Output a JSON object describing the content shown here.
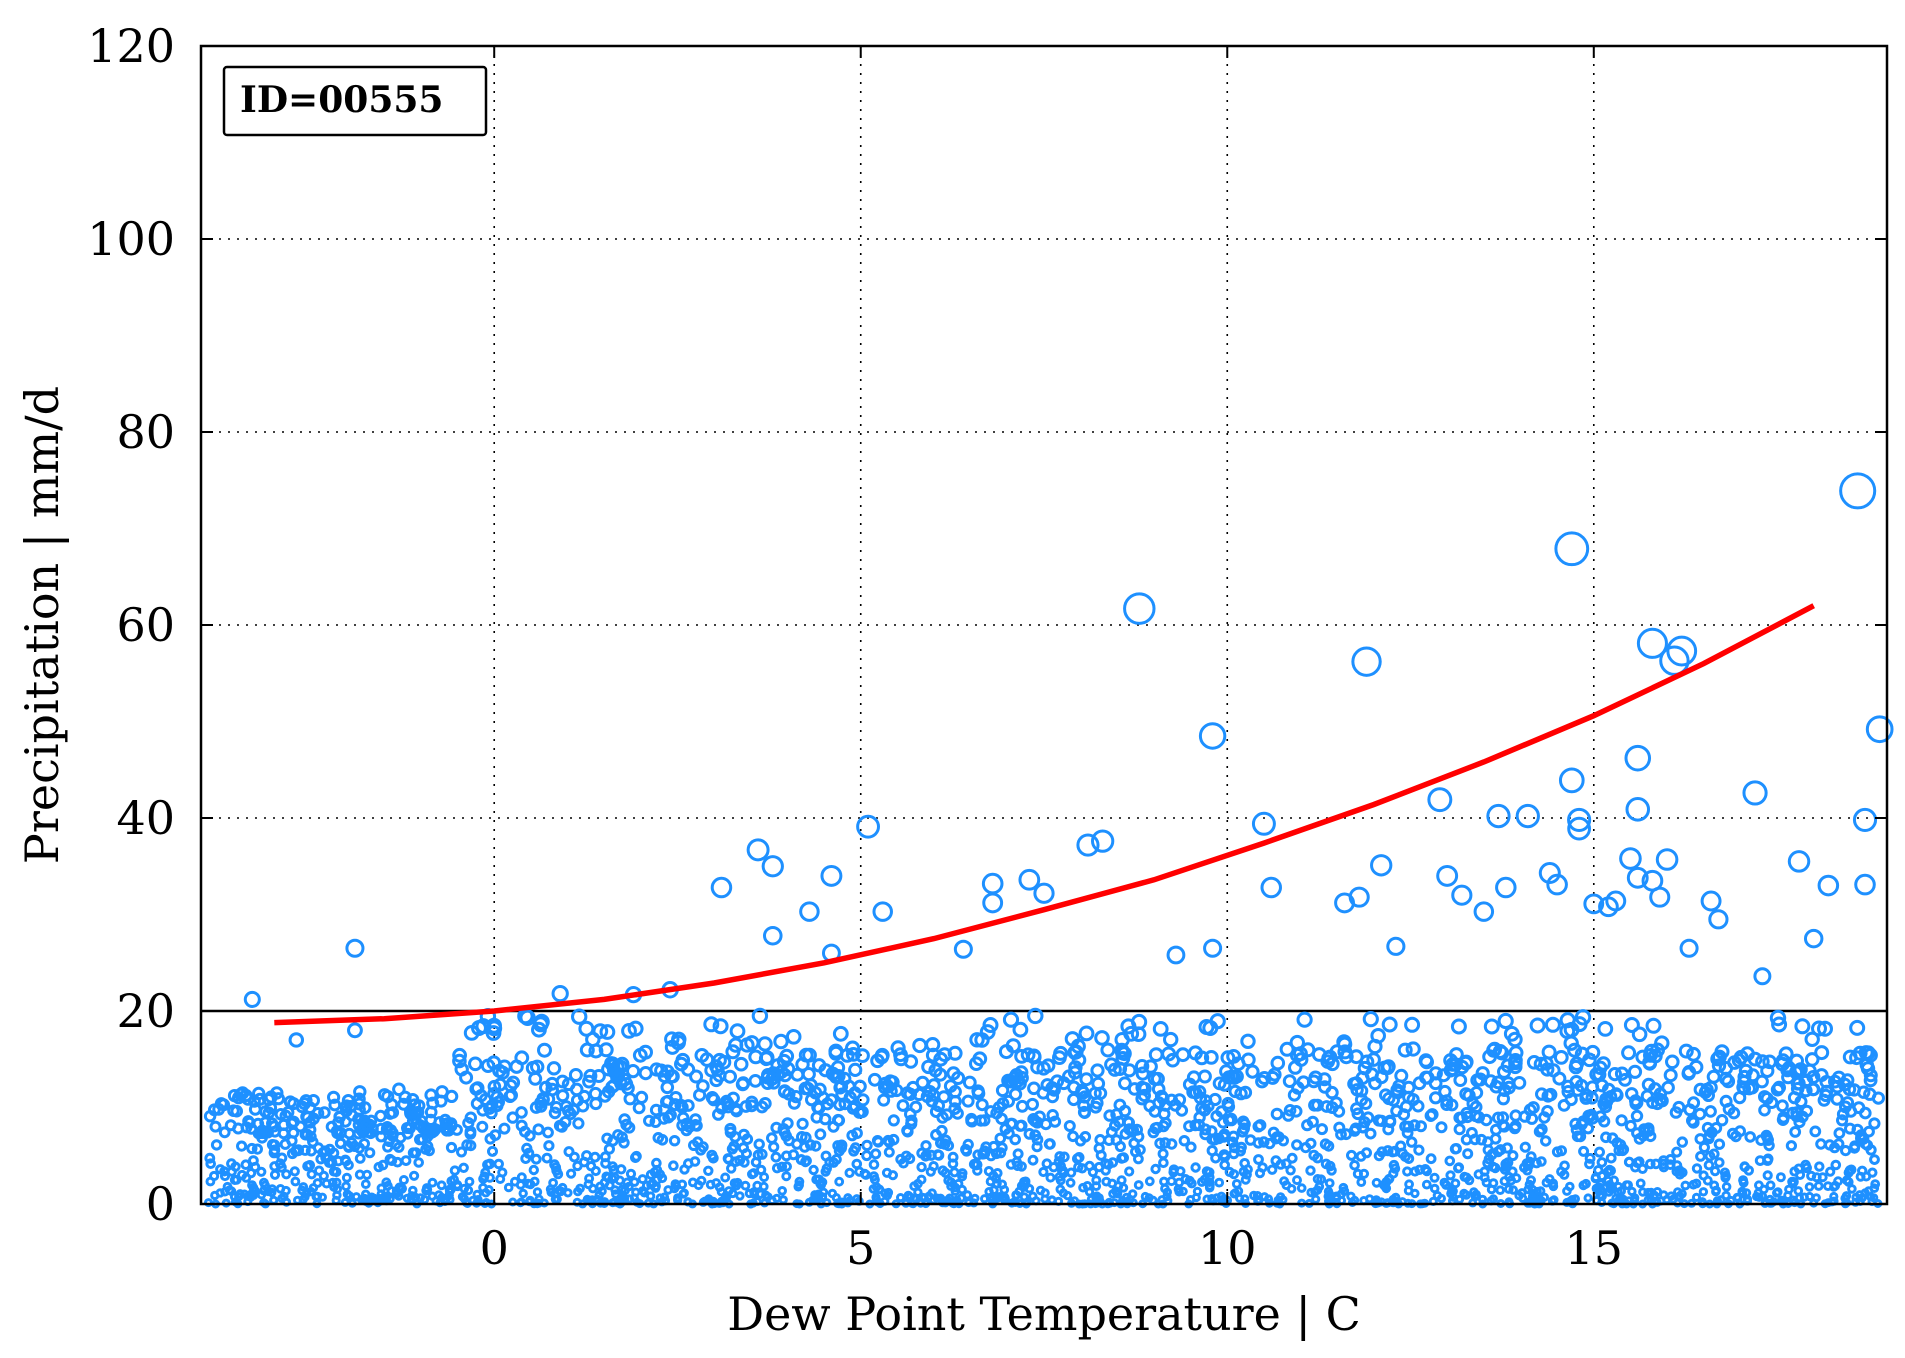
{
  "chart_data": {
    "type": "scatter",
    "title": "",
    "annotation": "ID=00555",
    "xlabel": "Dew Point Temperature | C",
    "ylabel": "Precipitation | mm/d",
    "xlim": [
      -4,
      19
    ],
    "ylim": [
      0,
      120
    ],
    "x_ticks": [
      0,
      5,
      10,
      15
    ],
    "x_tick_labels": [
      "0",
      "5",
      "10",
      "15"
    ],
    "y_ticks": [
      0,
      20,
      40,
      60,
      80,
      100,
      120
    ],
    "y_tick_labels": [
      "0",
      "20",
      "40",
      "60",
      "80",
      "100",
      "120"
    ],
    "grid": true,
    "colors": {
      "points": "#1e90ff",
      "fit": "#ff0000",
      "reference": "#000000"
    },
    "reference_line": {
      "y": 20
    },
    "fit_curve": {
      "x": [
        -3,
        -1.5,
        0,
        1.5,
        3,
        4.5,
        6,
        7.5,
        9,
        10.5,
        12,
        13.5,
        15,
        16.5,
        18
      ],
      "y": [
        18.8,
        19.2,
        20.0,
        21.2,
        22.9,
        25.0,
        27.5,
        30.5,
        33.6,
        37.4,
        41.4,
        45.8,
        50.6,
        56.0,
        62.0
      ]
    },
    "series": [
      {
        "x": [
          -3.3,
          -2.7,
          -1.9,
          -1.9,
          0.0,
          0.9,
          1.9,
          2.4,
          3.1,
          3.6,
          3.8,
          3.8,
          4.3,
          4.6,
          4.6,
          5.1,
          5.3,
          6.4,
          6.8,
          6.8,
          7.3,
          7.5,
          8.1,
          8.3,
          8.8,
          9.3,
          9.8,
          9.8,
          10.5,
          10.6,
          11.6,
          11.8,
          11.9,
          12.1,
          12.3,
          12.9,
          13.0,
          13.2,
          13.5,
          13.7,
          13.8,
          14.1,
          14.4,
          14.5,
          14.7,
          14.7,
          14.8,
          14.8,
          15.0,
          15.2,
          15.3,
          15.5,
          15.6,
          15.6,
          15.6,
          15.8,
          15.8,
          15.9,
          16.0,
          16.1,
          16.2,
          16.3,
          16.6,
          16.7,
          17.2,
          17.3,
          17.8,
          18.0,
          18.2,
          18.6,
          18.7,
          18.7,
          18.9
        ],
        "y": [
          21.2,
          17.0,
          26.5,
          18.0,
          18.2,
          21.8,
          21.7,
          22.2,
          32.8,
          36.7,
          35.0,
          27.8,
          30.3,
          34.0,
          26.0,
          39.1,
          30.3,
          26.4,
          33.2,
          31.2,
          33.6,
          32.2,
          37.2,
          37.6,
          61.7,
          25.8,
          48.5,
          26.5,
          39.4,
          32.8,
          31.2,
          31.8,
          56.2,
          35.1,
          26.7,
          41.9,
          34.0,
          32.0,
          30.3,
          40.2,
          32.8,
          40.2,
          34.3,
          33.1,
          67.9,
          43.9,
          39.8,
          38.9,
          31.1,
          30.8,
          31.4,
          35.8,
          46.2,
          40.9,
          33.8,
          58.1,
          33.5,
          31.8,
          35.7,
          56.3,
          57.3,
          26.5,
          31.4,
          29.5,
          42.6,
          23.6,
          35.5,
          27.5,
          33.0,
          73.9,
          33.1,
          39.8,
          49.2
        ]
      }
    ]
  }
}
